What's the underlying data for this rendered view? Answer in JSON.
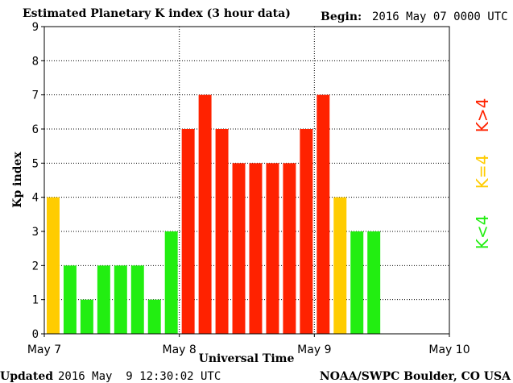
{
  "colors": {
    "k_below_4": "#22ee11",
    "k_equal_4": "#ffcc00",
    "k_above_4": "#ff2200",
    "background": "#ffffff",
    "axis": "#000000"
  },
  "header": {
    "title": "Estimated Planetary K index (3 hour data)",
    "begin_label": "Begin:",
    "begin_value": "2016 May 07 0000 UTC"
  },
  "footer": {
    "updated_label": "Updated",
    "updated_value": "2016 May  9 12:30:02 UTC",
    "credit": "NOAA/SWPC Boulder, CO USA"
  },
  "legend": [
    {
      "label": "K>4",
      "color": "#ff2200"
    },
    {
      "label": "K=4",
      "color": "#ffcc00"
    },
    {
      "label": "K<4",
      "color": "#22ee11"
    }
  ],
  "chart_data": {
    "type": "bar",
    "title": "Estimated Planetary K index (3 hour data)",
    "xlabel": "Universal Time",
    "ylabel": "Kp index",
    "ylim": [
      0,
      9
    ],
    "yticks": [
      0,
      1,
      2,
      3,
      4,
      5,
      6,
      7,
      8,
      9
    ],
    "xtick_labels": [
      "May 7",
      "May 8",
      "May 9",
      "May 10"
    ],
    "grid": true,
    "bins_per_day": 8,
    "days": 3,
    "values": [
      4,
      2,
      1,
      2,
      2,
      2,
      1,
      3,
      6,
      7,
      6,
      5,
      5,
      5,
      5,
      6,
      7,
      4,
      3,
      3
    ]
  }
}
